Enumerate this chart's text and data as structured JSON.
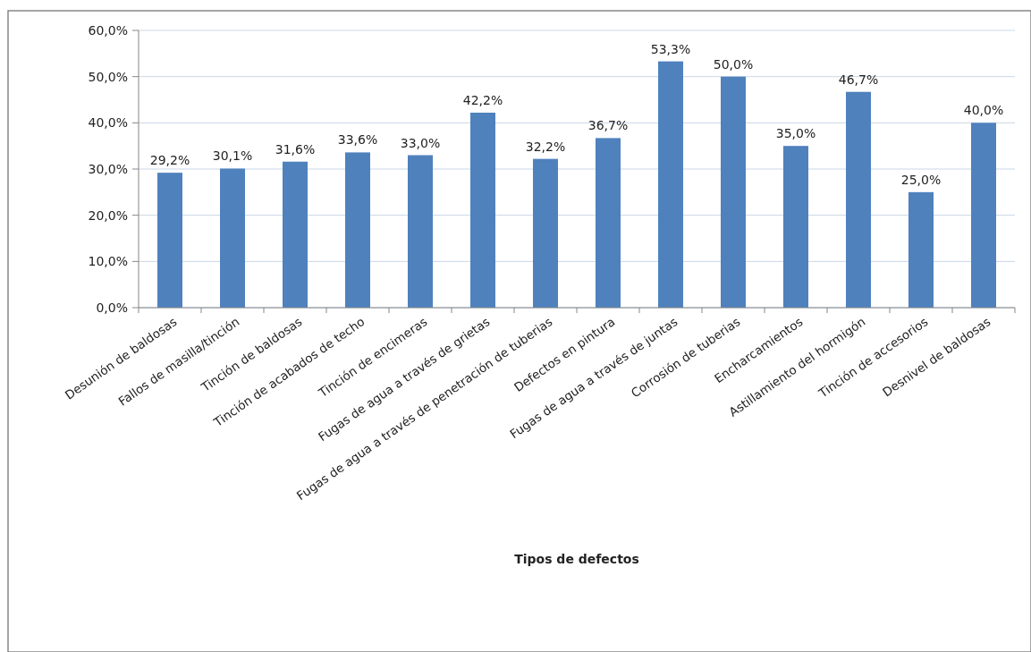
{
  "chart_data": {
    "type": "bar",
    "xlabel": "Tipos de defectos",
    "categories": [
      "Desunión de baldosas",
      "Fallos de masilla/tinción",
      "Tinción de baldosas",
      "Tinción de acabados de techo",
      "Tinción de encimeras",
      "Fugas de agua a través de grietas",
      "Fugas de agua a través de penetración de tuberias",
      "Defectos en pintura",
      "Fugas de agua a través de juntas",
      "Corrosión de tuberias",
      "Encharcamientos",
      "Astillamiento del hormigón",
      "Tinción de accesorios",
      "Desnivel de baldosas"
    ],
    "values": [
      29.2,
      30.1,
      31.6,
      33.6,
      33.0,
      42.2,
      32.2,
      36.7,
      53.3,
      50.0,
      35.0,
      46.7,
      25.0,
      40.0
    ],
    "value_labels": [
      "29,2%",
      "30,1%",
      "31,6%",
      "33,6%",
      "33,0%",
      "42,2%",
      "32,2%",
      "36,7%",
      "53,3%",
      "50,0%",
      "35,0%",
      "46,7%",
      "25,0%",
      "40,0%"
    ],
    "color": "#4f81bd",
    "ylim": [
      0,
      60
    ],
    "yticks": [
      {
        "value": 0,
        "label": "0,0%"
      },
      {
        "value": 10,
        "label": "10,0%"
      },
      {
        "value": 20,
        "label": "20,0%"
      },
      {
        "value": 30,
        "label": "30,0%"
      },
      {
        "value": 40,
        "label": "40,0%"
      },
      {
        "value": 50,
        "label": "50,0%"
      },
      {
        "value": 60,
        "label": "60,0%"
      }
    ],
    "grid": "y"
  }
}
